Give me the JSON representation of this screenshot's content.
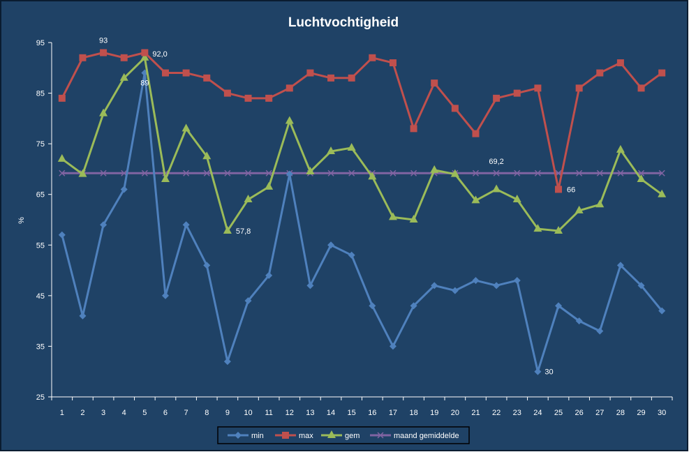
{
  "chart_data": {
    "type": "line",
    "title": "Luchtvochtigheid",
    "xlabel": "",
    "ylabel": "%",
    "ylim": [
      25,
      95
    ],
    "yticks": [
      25,
      35,
      45,
      55,
      65,
      75,
      85,
      95
    ],
    "categories": [
      "1",
      "2",
      "3",
      "4",
      "5",
      "6",
      "7",
      "8",
      "9",
      "10",
      "11",
      "12",
      "13",
      "14",
      "15",
      "16",
      "17",
      "18",
      "19",
      "20",
      "21",
      "22",
      "23",
      "24",
      "25",
      "26",
      "27",
      "28",
      "29",
      "30"
    ],
    "series": [
      {
        "name": "min",
        "color": "#4F81BD",
        "marker": "diamond",
        "values": [
          57,
          41,
          59,
          66,
          89,
          45,
          59,
          51,
          32,
          44,
          49,
          69,
          47,
          55,
          53,
          43,
          35,
          43,
          47,
          46,
          48,
          47,
          48,
          30,
          43,
          40,
          38,
          51,
          47,
          42
        ]
      },
      {
        "name": "max",
        "color": "#C0504D",
        "marker": "square",
        "values": [
          84,
          92,
          93,
          92,
          93,
          89,
          89,
          88,
          85,
          84,
          84,
          86,
          89,
          88,
          88,
          92,
          91,
          78,
          87,
          82,
          77,
          84,
          85,
          86,
          66,
          86,
          89,
          91,
          86,
          89
        ]
      },
      {
        "name": "gem",
        "color": "#9BBB59",
        "marker": "triangle",
        "values": [
          72,
          69,
          81,
          88,
          92,
          68,
          78,
          72.5,
          57.8,
          64,
          66.5,
          79.5,
          69.5,
          73.5,
          74.2,
          68.5,
          60.5,
          60,
          69.8,
          69,
          63.8,
          66,
          64,
          58.2,
          57.8,
          61.8,
          63,
          73.8,
          68,
          65
        ]
      },
      {
        "name": "maand gemiddelde",
        "color": "#8064A2",
        "marker": "x",
        "values": [
          69.2,
          69.2,
          69.2,
          69.2,
          69.2,
          69.2,
          69.2,
          69.2,
          69.2,
          69.2,
          69.2,
          69.2,
          69.2,
          69.2,
          69.2,
          69.2,
          69.2,
          69.2,
          69.2,
          69.2,
          69.2,
          69.2,
          69.2,
          69.2,
          69.2,
          69.2,
          69.2,
          69.2,
          69.2,
          69.2
        ]
      }
    ],
    "annotations": [
      {
        "text": "93",
        "series": 1,
        "index": 2
      },
      {
        "text": "92,0",
        "series": 2,
        "index": 4
      },
      {
        "text": "89",
        "series": 0,
        "index": 4
      },
      {
        "text": "57,8",
        "series": 2,
        "index": 8
      },
      {
        "text": "69,2",
        "series": 3,
        "index": 21
      },
      {
        "text": "66",
        "series": 1,
        "index": 24
      },
      {
        "text": "30",
        "series": 0,
        "index": 23
      }
    ],
    "grid": false,
    "legend_position": "bottom",
    "colors": {
      "background": "#1F4266",
      "border": "#0A1C30",
      "axis": "#FFFFFF",
      "text": "#FFFFFF"
    }
  }
}
